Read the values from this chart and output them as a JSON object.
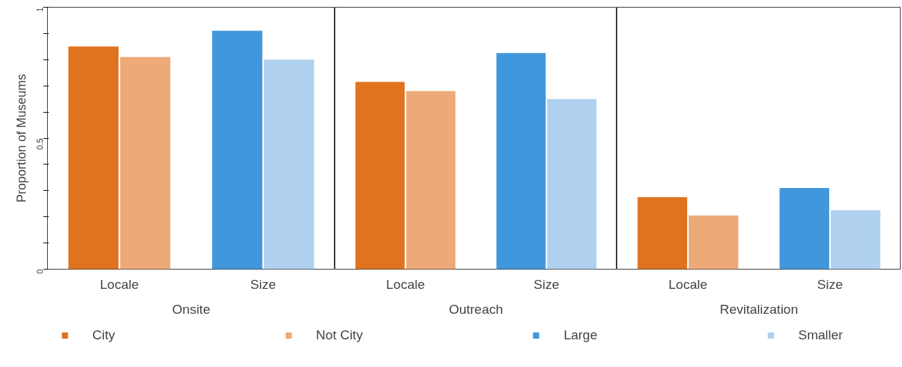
{
  "chart_data": [
    {
      "type": "bar",
      "xlabel": "Onsite",
      "ylabel": "Proportion of Museums",
      "categories": [
        "Locale",
        "Size"
      ],
      "ylim": [
        0,
        1
      ],
      "yticks": [
        0,
        {
          "value": 0.1,
          "label": null
        },
        {
          "value": 0.2,
          "label": null
        },
        {
          "value": 0.3,
          "label": null
        },
        {
          "value": 0.4,
          "label": null
        },
        0.5,
        {
          "value": 0.6,
          "label": null
        },
        {
          "value": 0.7,
          "label": null
        },
        {
          "value": 0.8,
          "label": null
        },
        {
          "value": 0.9,
          "label": null
        },
        1
      ],
      "grid": false,
      "legend": "bottom",
      "series": [
        {
          "name": "City",
          "color": "#e0731f",
          "values": [
            0.85,
            null
          ]
        },
        {
          "name": "Not City",
          "color": "#edaa78",
          "values": [
            0.81,
            null
          ]
        },
        {
          "name": "Large",
          "color": "#4097dc",
          "values": [
            null,
            0.91
          ]
        },
        {
          "name": "Smaller",
          "color": "#afd1ef",
          "values": [
            null,
            0.8
          ]
        }
      ]
    },
    {
      "type": "bar",
      "xlabel": "Outreach",
      "categories": [
        "Locale",
        "Size"
      ],
      "ylim": [
        0,
        1
      ],
      "yticks": [
        0,
        0.5,
        1
      ],
      "tick_labels": "x",
      "grid": false,
      "series": [
        {
          "color": "#e0731f",
          "values": [
            0.715,
            null
          ]
        },
        {
          "color": "#edaa78",
          "values": [
            0.68,
            null
          ]
        },
        {
          "color": "#4097dc",
          "values": [
            null,
            0.825
          ]
        },
        {
          "color": "#afd1ef",
          "values": [
            null,
            0.65
          ]
        }
      ]
    },
    {
      "type": "bar",
      "xlabel": "Revitalization",
      "categories": [
        "Locale",
        "Size"
      ],
      "ylim": [
        0,
        1
      ],
      "yticks": [
        0,
        0.5,
        1
      ],
      "tick_labels": "x",
      "grid": false,
      "series": [
        {
          "color": "#e0731f",
          "values": [
            0.275,
            null
          ]
        },
        {
          "color": "#edaa78",
          "values": [
            0.205,
            null
          ]
        },
        {
          "color": "#4097dc",
          "values": [
            null,
            0.31
          ]
        },
        {
          "color": "#afd1ef",
          "values": [
            null,
            0.225
          ]
        }
      ]
    }
  ]
}
